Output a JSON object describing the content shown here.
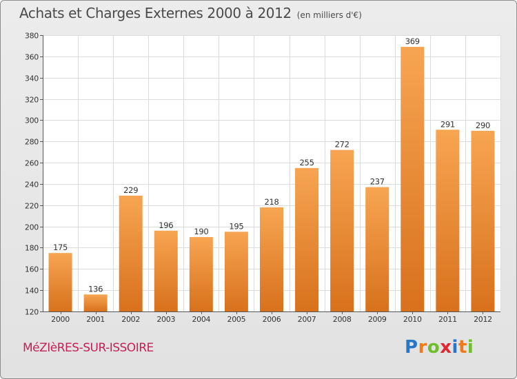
{
  "header": {
    "title": "Achats et Charges Externes 2000 à 2012",
    "subtitle": "(en milliers d'€)"
  },
  "footer": {
    "location": "MéZIèRES-SUR-ISSOIRE",
    "brand": {
      "letters": [
        "P",
        "r",
        "o",
        "x",
        "i",
        "t",
        "i"
      ],
      "colors": [
        "#2a76c6",
        "#f07a1b",
        "#6ebe2e",
        "#e0262f",
        "#2a76c6",
        "#f07a1b",
        "#6ebe2e"
      ]
    }
  },
  "chart_data": {
    "type": "bar",
    "title": "Achats et Charges Externes 2000 à 2012",
    "subtitle": "(en milliers d'€)",
    "xlabel": "",
    "ylabel": "",
    "categories": [
      "2000",
      "2001",
      "2002",
      "2003",
      "2004",
      "2005",
      "2006",
      "2007",
      "2008",
      "2009",
      "2010",
      "2011",
      "2012"
    ],
    "values": [
      175,
      136,
      229,
      196,
      190,
      195,
      218,
      255,
      272,
      237,
      369,
      291,
      290
    ],
    "ylim": [
      120,
      380
    ],
    "yticks": [
      120,
      140,
      160,
      180,
      200,
      220,
      240,
      260,
      280,
      300,
      320,
      340,
      360,
      380
    ],
    "grid": true,
    "bar_color_top": "#f7a552",
    "bar_color_bottom": "#d8711c"
  }
}
